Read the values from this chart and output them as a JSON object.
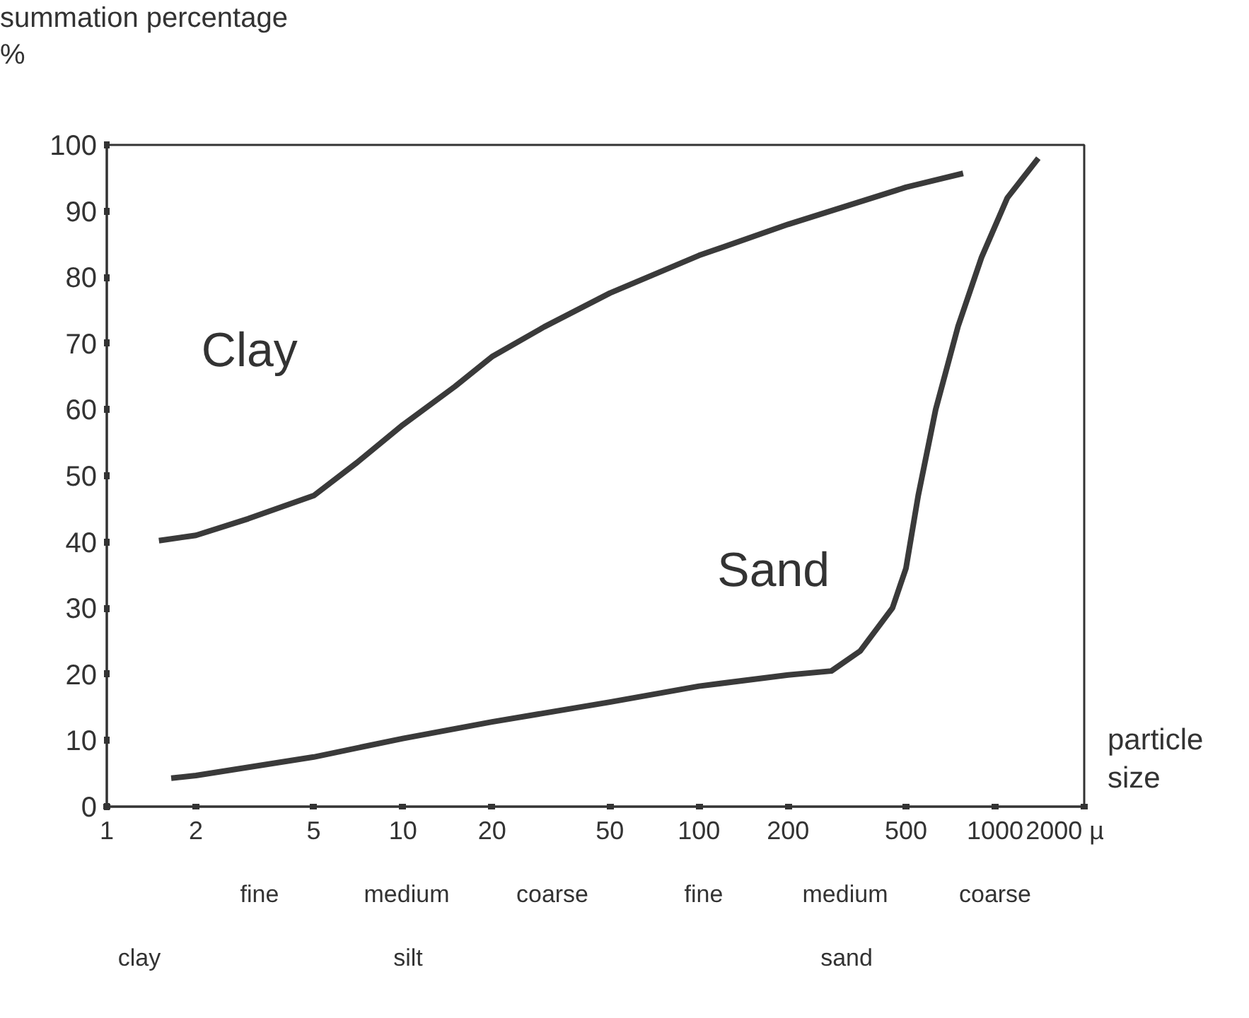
{
  "chart_data": {
    "type": "line",
    "ylabel": "summation percentage\n%",
    "xlabel": "particle\nsize",
    "log": "x",
    "xlim": [
      1,
      2000
    ],
    "ylim": [
      0,
      100
    ],
    "xticks": [
      1,
      2,
      5,
      10,
      20,
      50,
      100,
      200,
      500,
      1000,
      {
        "value": 2000,
        "label": "2000 µ"
      }
    ],
    "yticks": [
      0,
      10,
      20,
      30,
      40,
      50,
      60,
      70,
      80,
      90,
      100
    ],
    "grid": false,
    "legend": false,
    "marker": "none",
    "line_style": "solid",
    "series": [
      {
        "name": "Clay",
        "color": "#3a3a3a",
        "x": [
          1.5,
          2,
          3,
          5,
          7,
          10,
          15,
          20,
          30,
          50,
          100,
          200,
          500,
          780
        ],
        "values": [
          40.2,
          41,
          43.5,
          47,
          52,
          57.7,
          63.5,
          68,
          72.5,
          77.6,
          83.3,
          88,
          93.6,
          95.7
        ]
      },
      {
        "name": "Sand",
        "color": "#3a3a3a",
        "x": [
          1.65,
          2,
          5,
          10,
          20,
          50,
          100,
          200,
          280,
          350,
          450,
          500,
          550,
          630,
          750,
          900,
          1100,
          1400
        ],
        "values": [
          4.3,
          4.7,
          7.5,
          10.3,
          12.8,
          15.8,
          18.2,
          19.9,
          20.5,
          23.5,
          30,
          36,
          47,
          60,
          72.6,
          83,
          92,
          98
        ]
      }
    ],
    "annotations": [
      "fine",
      "medium",
      "coarse",
      "fine",
      "medium",
      "coarse",
      "clay",
      "silt",
      "sand"
    ]
  }
}
